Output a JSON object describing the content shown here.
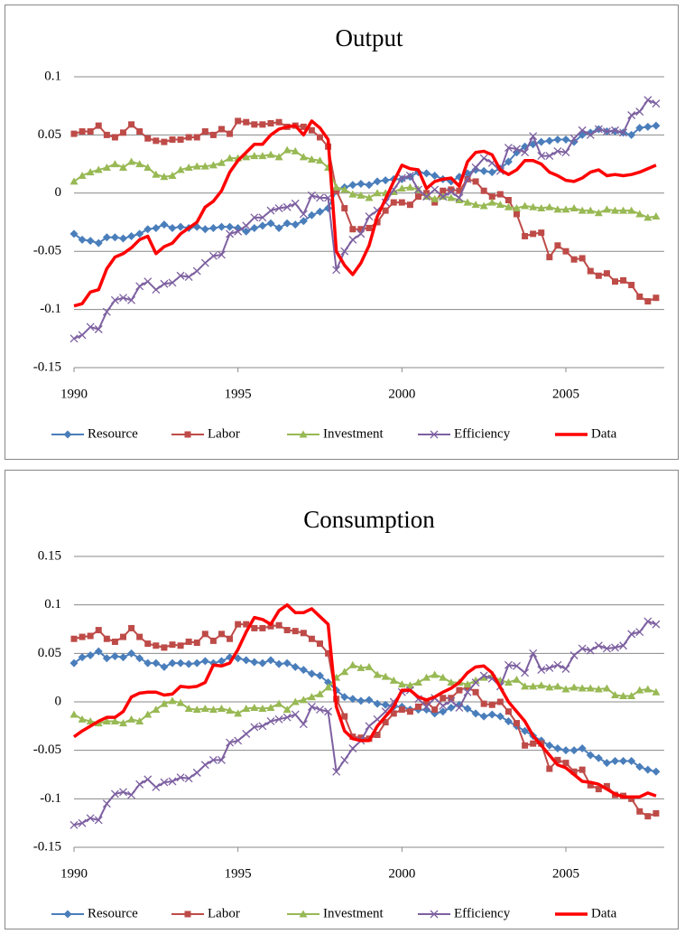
{
  "chart_data": [
    {
      "type": "line",
      "title": "Output",
      "x": [
        1990,
        1990.25,
        1990.5,
        1990.75,
        1991,
        1991.25,
        1991.5,
        1991.75,
        1992,
        1992.25,
        1992.5,
        1992.75,
        1993,
        1993.25,
        1993.5,
        1993.75,
        1994,
        1994.25,
        1994.5,
        1994.75,
        1995,
        1995.25,
        1995.5,
        1995.75,
        1996,
        1996.25,
        1996.5,
        1996.75,
        1997,
        1997.25,
        1997.5,
        1997.75,
        1998,
        1998.25,
        1998.5,
        1998.75,
        1999,
        1999.25,
        1999.5,
        1999.75,
        2000,
        2000.25,
        2000.5,
        2000.75,
        2001,
        2001.25,
        2001.5,
        2001.75,
        2002,
        2002.25,
        2002.5,
        2002.75,
        2003,
        2003.25,
        2003.5,
        2003.75,
        2004,
        2004.25,
        2004.5,
        2004.75,
        2005,
        2005.25,
        2005.5,
        2005.75,
        2006,
        2006.25,
        2006.5,
        2006.75,
        2007,
        2007.25,
        2007.5,
        2007.75
      ],
      "xlim": [
        1990,
        2008
      ],
      "xticks": [
        1990,
        1995,
        2000,
        2005
      ],
      "ylim": [
        -0.15,
        0.1
      ],
      "yticks": [
        -0.15,
        -0.1,
        -0.05,
        0,
        0.05,
        0.1
      ],
      "grid": true,
      "legend": "bottom",
      "series": [
        {
          "name": "Resource",
          "color": "#4a7ebb",
          "marker": "diamond",
          "values": [
            -0.035,
            -0.04,
            -0.041,
            -0.043,
            -0.038,
            -0.038,
            -0.039,
            -0.037,
            -0.035,
            -0.031,
            -0.03,
            -0.027,
            -0.03,
            -0.029,
            -0.03,
            -0.029,
            -0.031,
            -0.03,
            -0.029,
            -0.029,
            -0.03,
            -0.033,
            -0.03,
            -0.028,
            -0.026,
            -0.03,
            -0.026,
            -0.027,
            -0.024,
            -0.019,
            -0.016,
            -0.013,
            0.002,
            0.005,
            0.007,
            0.008,
            0.007,
            0.01,
            0.011,
            0.012,
            0.012,
            0.014,
            0.018,
            0.017,
            0.015,
            0.012,
            0.01,
            0.014,
            0.017,
            0.02,
            0.019,
            0.018,
            0.021,
            0.027,
            0.035,
            0.04,
            0.042,
            0.044,
            0.045,
            0.046,
            0.046,
            0.044,
            0.05,
            0.052,
            0.055,
            0.053,
            0.053,
            0.052,
            0.05,
            0.056,
            0.057,
            0.058
          ]
        },
        {
          "name": "Labor",
          "color": "#be4b48",
          "marker": "square",
          "values": [
            0.051,
            0.053,
            0.053,
            0.058,
            0.05,
            0.048,
            0.052,
            0.059,
            0.053,
            0.047,
            0.045,
            0.044,
            0.046,
            0.046,
            0.048,
            0.048,
            0.053,
            0.05,
            0.055,
            0.051,
            0.062,
            0.061,
            0.059,
            0.059,
            0.06,
            0.061,
            0.057,
            0.058,
            0.057,
            0.054,
            0.048,
            0.04,
            0.002,
            -0.013,
            -0.031,
            -0.031,
            -0.03,
            -0.025,
            -0.015,
            -0.008,
            -0.008,
            -0.01,
            -0.003,
            0.0,
            -0.008,
            0.002,
            0.003,
            0.002,
            0.012,
            0.01,
            0.002,
            -0.003,
            -0.001,
            -0.006,
            -0.018,
            -0.037,
            -0.035,
            -0.034,
            -0.055,
            -0.045,
            -0.05,
            -0.057,
            -0.056,
            -0.067,
            -0.071,
            -0.069,
            -0.076,
            -0.075,
            -0.079,
            -0.089,
            -0.093,
            -0.09
          ]
        },
        {
          "name": "Investment",
          "color": "#98b954",
          "marker": "triangle",
          "values": [
            0.01,
            0.015,
            0.018,
            0.02,
            0.022,
            0.025,
            0.022,
            0.027,
            0.025,
            0.022,
            0.016,
            0.014,
            0.015,
            0.02,
            0.022,
            0.023,
            0.023,
            0.024,
            0.026,
            0.03,
            0.03,
            0.031,
            0.032,
            0.032,
            0.033,
            0.031,
            0.037,
            0.036,
            0.031,
            0.029,
            0.028,
            0.022,
            0.005,
            0.003,
            -0.001,
            -0.002,
            -0.004,
            0.0,
            0.0,
            0.001,
            0.004,
            0.005,
            0.003,
            -0.003,
            -0.005,
            -0.003,
            -0.004,
            -0.006,
            -0.008,
            -0.01,
            -0.011,
            -0.008,
            -0.01,
            -0.012,
            -0.013,
            -0.011,
            -0.012,
            -0.013,
            -0.012,
            -0.014,
            -0.014,
            -0.013,
            -0.015,
            -0.015,
            -0.017,
            -0.014,
            -0.015,
            -0.015,
            -0.015,
            -0.018,
            -0.021,
            -0.02
          ]
        },
        {
          "name": "Efficiency",
          "color": "#7d60a0",
          "marker": "cross",
          "values": [
            -0.125,
            -0.122,
            -0.115,
            -0.117,
            -0.102,
            -0.092,
            -0.09,
            -0.092,
            -0.08,
            -0.076,
            -0.083,
            -0.078,
            -0.077,
            -0.071,
            -0.072,
            -0.067,
            -0.06,
            -0.054,
            -0.053,
            -0.035,
            -0.033,
            -0.028,
            -0.021,
            -0.021,
            -0.015,
            -0.013,
            -0.012,
            -0.009,
            -0.018,
            -0.002,
            -0.004,
            -0.004,
            -0.066,
            -0.05,
            -0.04,
            -0.035,
            -0.02,
            -0.015,
            -0.008,
            0.003,
            0.013,
            0.015,
            0.003,
            -0.003,
            0.003,
            -0.003,
            0.001,
            -0.004,
            0.012,
            0.022,
            0.03,
            0.026,
            0.019,
            0.039,
            0.038,
            0.035,
            0.049,
            0.032,
            0.032,
            0.036,
            0.035,
            0.047,
            0.054,
            0.05,
            0.055,
            0.053,
            0.054,
            0.052,
            0.067,
            0.07,
            0.08,
            0.077
          ]
        },
        {
          "name": "Data",
          "color": "#ff0000",
          "marker": "none",
          "values": [
            -0.097,
            -0.095,
            -0.085,
            -0.083,
            -0.065,
            -0.055,
            -0.052,
            -0.047,
            -0.04,
            -0.037,
            -0.052,
            -0.046,
            -0.043,
            -0.035,
            -0.03,
            -0.025,
            -0.012,
            -0.007,
            0.002,
            0.018,
            0.028,
            0.035,
            0.042,
            0.042,
            0.05,
            0.055,
            0.057,
            0.058,
            0.05,
            0.062,
            0.056,
            0.046,
            -0.05,
            -0.062,
            -0.07,
            -0.06,
            -0.045,
            -0.02,
            -0.005,
            0.01,
            0.024,
            0.021,
            0.02,
            0.004,
            0.01,
            0.012,
            0.013,
            0.006,
            0.027,
            0.035,
            0.036,
            0.033,
            0.02,
            0.016,
            0.02,
            0.028,
            0.028,
            0.025,
            0.018,
            0.015,
            0.011,
            0.01,
            0.013,
            0.018,
            0.02,
            0.015,
            0.016,
            0.015,
            0.016,
            0.018,
            0.021,
            0.024
          ]
        }
      ]
    },
    {
      "type": "line",
      "title": "Consumption",
      "x": [
        1990,
        1990.25,
        1990.5,
        1990.75,
        1991,
        1991.25,
        1991.5,
        1991.75,
        1992,
        1992.25,
        1992.5,
        1992.75,
        1993,
        1993.25,
        1993.5,
        1993.75,
        1994,
        1994.25,
        1994.5,
        1994.75,
        1995,
        1995.25,
        1995.5,
        1995.75,
        1996,
        1996.25,
        1996.5,
        1996.75,
        1997,
        1997.25,
        1997.5,
        1997.75,
        1998,
        1998.25,
        1998.5,
        1998.75,
        1999,
        1999.25,
        1999.5,
        1999.75,
        2000,
        2000.25,
        2000.5,
        2000.75,
        2001,
        2001.25,
        2001.5,
        2001.75,
        2002,
        2002.25,
        2002.5,
        2002.75,
        2003,
        2003.25,
        2003.5,
        2003.75,
        2004,
        2004.25,
        2004.5,
        2004.75,
        2005,
        2005.25,
        2005.5,
        2005.75,
        2006,
        2006.25,
        2006.5,
        2006.75,
        2007,
        2007.25,
        2007.5,
        2007.75
      ],
      "xlim": [
        1990,
        2008
      ],
      "xticks": [
        1990,
        1995,
        2000,
        2005
      ],
      "ylim": [
        -0.15,
        0.15
      ],
      "yticks": [
        -0.15,
        -0.1,
        -0.05,
        0,
        0.05,
        0.1,
        0.15
      ],
      "grid": true,
      "legend": "bottom",
      "series": [
        {
          "name": "Resource",
          "color": "#4a7ebb",
          "marker": "diamond",
          "values": [
            0.04,
            0.046,
            0.048,
            0.052,
            0.045,
            0.047,
            0.046,
            0.05,
            0.045,
            0.04,
            0.04,
            0.036,
            0.04,
            0.04,
            0.039,
            0.04,
            0.042,
            0.04,
            0.042,
            0.046,
            0.045,
            0.043,
            0.041,
            0.04,
            0.043,
            0.039,
            0.04,
            0.036,
            0.033,
            0.029,
            0.027,
            0.02,
            0.012,
            0.005,
            0.003,
            0.001,
            0.002,
            -0.002,
            -0.003,
            -0.005,
            -0.005,
            -0.008,
            -0.008,
            -0.008,
            -0.012,
            -0.01,
            -0.006,
            -0.003,
            -0.007,
            -0.012,
            -0.015,
            -0.013,
            -0.015,
            -0.02,
            -0.025,
            -0.03,
            -0.035,
            -0.04,
            -0.045,
            -0.048,
            -0.05,
            -0.05,
            -0.048,
            -0.055,
            -0.058,
            -0.063,
            -0.061,
            -0.061,
            -0.061,
            -0.067,
            -0.07,
            -0.072
          ]
        },
        {
          "name": "Labor",
          "color": "#be4b48",
          "marker": "square",
          "values": [
            0.065,
            0.067,
            0.068,
            0.074,
            0.065,
            0.062,
            0.067,
            0.076,
            0.067,
            0.06,
            0.058,
            0.056,
            0.059,
            0.058,
            0.062,
            0.061,
            0.07,
            0.063,
            0.07,
            0.065,
            0.08,
            0.08,
            0.076,
            0.076,
            0.078,
            0.079,
            0.074,
            0.073,
            0.071,
            0.065,
            0.06,
            0.05,
            0.003,
            -0.015,
            -0.036,
            -0.037,
            -0.038,
            -0.034,
            -0.021,
            -0.012,
            -0.008,
            -0.01,
            -0.005,
            0.0,
            -0.008,
            0.004,
            0.004,
            0.012,
            0.015,
            0.01,
            -0.002,
            -0.003,
            0.0,
            -0.01,
            -0.022,
            -0.045,
            -0.043,
            -0.043,
            -0.069,
            -0.06,
            -0.063,
            -0.072,
            -0.07,
            -0.086,
            -0.09,
            -0.087,
            -0.096,
            -0.097,
            -0.1,
            -0.113,
            -0.118,
            -0.115
          ]
        },
        {
          "name": "Investment",
          "color": "#98b954",
          "marker": "triangle",
          "values": [
            -0.013,
            -0.018,
            -0.02,
            -0.022,
            -0.02,
            -0.02,
            -0.022,
            -0.018,
            -0.02,
            -0.013,
            -0.008,
            -0.002,
            0.001,
            -0.001,
            -0.007,
            -0.008,
            -0.007,
            -0.008,
            -0.007,
            -0.009,
            -0.012,
            -0.007,
            -0.006,
            -0.007,
            -0.006,
            -0.002,
            -0.008,
            0.0,
            0.002,
            0.005,
            0.008,
            0.015,
            0.025,
            0.031,
            0.038,
            0.035,
            0.036,
            0.028,
            0.026,
            0.022,
            0.018,
            0.017,
            0.02,
            0.025,
            0.028,
            0.025,
            0.02,
            0.02,
            0.018,
            0.022,
            0.025,
            0.027,
            0.022,
            0.02,
            0.023,
            0.016,
            0.016,
            0.017,
            0.015,
            0.016,
            0.013,
            0.015,
            0.014,
            0.014,
            0.013,
            0.014,
            0.007,
            0.006,
            0.006,
            0.012,
            0.013,
            0.01
          ]
        },
        {
          "name": "Efficiency",
          "color": "#7d60a0",
          "marker": "cross",
          "values": [
            -0.127,
            -0.125,
            -0.12,
            -0.122,
            -0.105,
            -0.095,
            -0.093,
            -0.096,
            -0.085,
            -0.08,
            -0.088,
            -0.083,
            -0.082,
            -0.078,
            -0.079,
            -0.073,
            -0.065,
            -0.06,
            -0.06,
            -0.042,
            -0.04,
            -0.033,
            -0.026,
            -0.025,
            -0.02,
            -0.018,
            -0.016,
            -0.013,
            -0.023,
            -0.005,
            -0.008,
            -0.01,
            -0.072,
            -0.06,
            -0.048,
            -0.04,
            -0.025,
            -0.018,
            -0.01,
            0.0,
            0.01,
            0.012,
            0.003,
            -0.005,
            0.004,
            -0.004,
            0.001,
            -0.006,
            0.01,
            0.02,
            0.027,
            0.024,
            0.016,
            0.038,
            0.037,
            0.03,
            0.05,
            0.033,
            0.035,
            0.038,
            0.034,
            0.048,
            0.055,
            0.053,
            0.058,
            0.055,
            0.056,
            0.058,
            0.07,
            0.072,
            0.083,
            0.08
          ]
        },
        {
          "name": "Data",
          "color": "#ff0000",
          "marker": "none",
          "values": [
            -0.036,
            -0.03,
            -0.025,
            -0.02,
            -0.016,
            -0.016,
            -0.01,
            0.005,
            0.009,
            0.01,
            0.01,
            0.007,
            0.008,
            0.016,
            0.015,
            0.016,
            0.02,
            0.038,
            0.037,
            0.04,
            0.054,
            0.072,
            0.087,
            0.085,
            0.08,
            0.094,
            0.1,
            0.092,
            0.092,
            0.096,
            0.088,
            0.08,
            -0.005,
            -0.03,
            -0.038,
            -0.04,
            -0.04,
            -0.025,
            -0.015,
            -0.005,
            0.012,
            0.012,
            0.005,
            0.002,
            0.005,
            0.01,
            0.014,
            0.02,
            0.03,
            0.036,
            0.037,
            0.03,
            0.015,
            0.0,
            -0.01,
            -0.02,
            -0.035,
            -0.045,
            -0.055,
            -0.065,
            -0.068,
            -0.075,
            -0.082,
            -0.083,
            -0.085,
            -0.09,
            -0.095,
            -0.098,
            -0.098,
            -0.098,
            -0.094,
            -0.097
          ]
        }
      ]
    }
  ]
}
